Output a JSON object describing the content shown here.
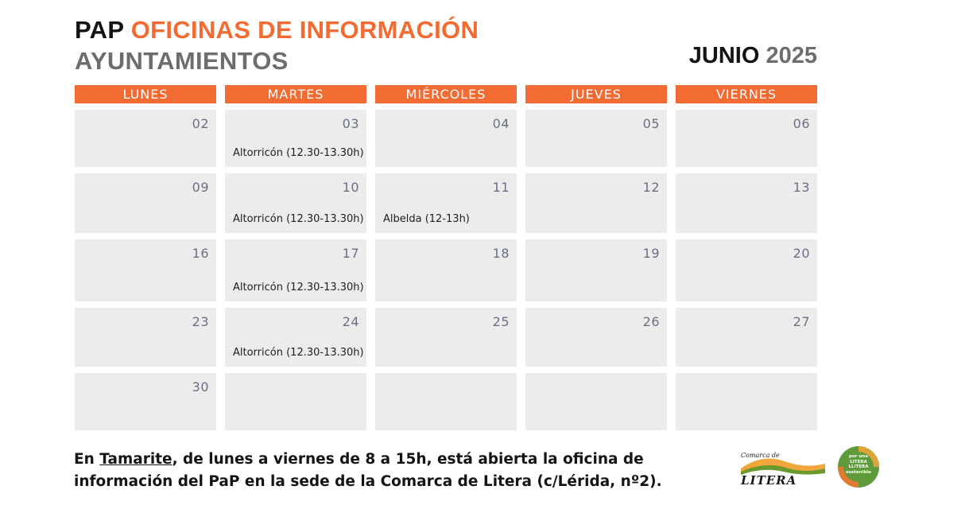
{
  "header": {
    "title_part1": "PAP",
    "title_part2": "OFICINAS DE INFORMACIÓN",
    "subtitle": "AYUNTAMIENTOS",
    "month": "JUNIO",
    "year": "2025"
  },
  "weekdays": [
    "LUNES",
    "MARTES",
    "MIÉRCOLES",
    "JUEVES",
    "VIERNES"
  ],
  "weeks": [
    [
      {
        "day": "02",
        "event": ""
      },
      {
        "day": "03",
        "event": "Altorricón (12.30-13.30h)"
      },
      {
        "day": "04",
        "event": ""
      },
      {
        "day": "05",
        "event": ""
      },
      {
        "day": "06",
        "event": ""
      }
    ],
    [
      {
        "day": "09",
        "event": ""
      },
      {
        "day": "10",
        "event": "Altorricón (12.30-13.30h)"
      },
      {
        "day": "11",
        "event": "Albelda (12-13h)"
      },
      {
        "day": "12",
        "event": ""
      },
      {
        "day": "13",
        "event": ""
      }
    ],
    [
      {
        "day": "16",
        "event": ""
      },
      {
        "day": "17",
        "event": "Altorricón (12.30-13.30h)"
      },
      {
        "day": "18",
        "event": ""
      },
      {
        "day": "19",
        "event": ""
      },
      {
        "day": "20",
        "event": ""
      }
    ],
    [
      {
        "day": "23",
        "event": ""
      },
      {
        "day": "24",
        "event": "Altorricón (12.30-13.30h)"
      },
      {
        "day": "25",
        "event": ""
      },
      {
        "day": "26",
        "event": ""
      },
      {
        "day": "27",
        "event": ""
      }
    ],
    [
      {
        "day": "30",
        "event": ""
      },
      {
        "day": "",
        "event": ""
      },
      {
        "day": "",
        "event": ""
      },
      {
        "day": "",
        "event": ""
      },
      {
        "day": "",
        "event": ""
      }
    ]
  ],
  "footer": {
    "prefix": "En ",
    "place": "Tamarite",
    "rest": ", de lunes a viernes de 8 a 15h, está abierta la oficina de información del PaP en la sede de la Comarca de Litera (c/Lérida, nº2)."
  },
  "logos": {
    "comarca_text_top": "Comarca de",
    "comarca_text_main": "LITERA",
    "circle_text": "por una LITERA LLITERA sostenible"
  },
  "colors": {
    "accent": "#f26b32",
    "cell_bg": "#ececec",
    "day_number": "#6a6f85"
  }
}
